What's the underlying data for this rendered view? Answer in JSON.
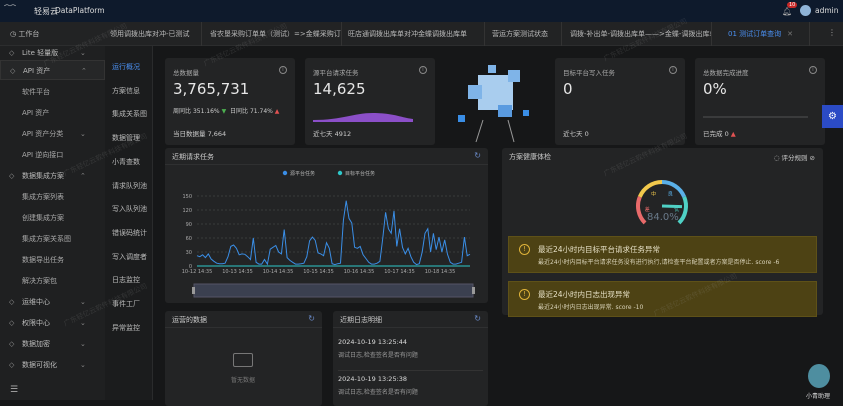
{
  "header": {
    "logo_text": "轻易云",
    "logo_caption": "集成平台",
    "app_name": "DataPlatform",
    "notification_count": "10",
    "user": "admin"
  },
  "tabs": [
    {
      "label": "工作台"
    },
    {
      "label": "领用调拨出库对冲-已测试"
    },
    {
      "label": "省农垦采购订单单（测试）=>金蝶采购订单单"
    },
    {
      "label": "旺店通调拨出库单对冲金蝶调拨出库单"
    },
    {
      "label": "营运方案测试状态"
    },
    {
      "label": "调拨-补出单-调拨出库单——>金蝶-调拨出库单"
    },
    {
      "label": "01 测试订单查询",
      "active": true
    }
  ],
  "sidebar": {
    "items": [
      {
        "label": "Lite 轻量版",
        "icon": "lite-icon",
        "chev": "⌄"
      },
      {
        "label": "API 资产",
        "icon": "api-icon",
        "chev": "⌃"
      },
      {
        "label": "软件平台",
        "sub": true
      },
      {
        "label": "API 资产",
        "sub": true
      },
      {
        "label": "API 资产分类",
        "sub": true,
        "chev": "⌄"
      },
      {
        "label": "API 逆向接口",
        "sub": true
      },
      {
        "label": "数据集成方案",
        "icon": "integration-icon",
        "chev": "⌃"
      },
      {
        "label": "集成方案列表",
        "sub": true
      },
      {
        "label": "创建集成方案",
        "sub": true
      },
      {
        "label": "集成方案关系图",
        "sub": true
      },
      {
        "label": "数据导出任务",
        "sub": true
      },
      {
        "label": "解决方案包",
        "sub": true
      },
      {
        "label": "运维中心",
        "icon": "ops-icon",
        "chev": "⌄"
      },
      {
        "label": "权限中心",
        "icon": "permission-icon",
        "chev": "⌄"
      },
      {
        "label": "数据加密",
        "icon": "encrypt-icon",
        "chev": "⌄"
      },
      {
        "label": "数据可视化",
        "icon": "chart-icon",
        "chev": "⌄"
      }
    ]
  },
  "subnav": [
    "运行概况",
    "方案信息",
    "集成关系图",
    "数据管理",
    "小青查数",
    "请求队列池",
    "写入队列池",
    "错误码统计",
    "写入调度者",
    "日志监控",
    "事件工厂",
    "异常监控"
  ],
  "stats": [
    {
      "title": "总数据量",
      "value": "3,765,731",
      "wow_label": "周同比",
      "wow": "351.16%",
      "wow_dir": "down",
      "mom_label": "日同比",
      "mom": "71.74%",
      "mom_dir": "up",
      "foot_label": "当日数据量",
      "foot_value": "7,664"
    },
    {
      "title": "源平台请求任务",
      "value": "14,625",
      "foot_label": "近七天",
      "foot_value": "4912"
    },
    {
      "title": "目标平台写入任务",
      "value": "0",
      "foot_label": "近七天",
      "foot_value": "0"
    },
    {
      "title": "总数据完成进度",
      "value": "0%",
      "progress": 0,
      "foot_label": "已完成",
      "foot_value": "0"
    }
  ],
  "chart_data": {
    "type": "line",
    "title": "近期请求任务",
    "x_ticks": [
      "10-12 14:35",
      "10-13 14:35",
      "10-14 14:35",
      "10-15 14:35",
      "10-16 14:35",
      "10-17 14:35",
      "10-18 14:35"
    ],
    "ylim": [
      0,
      150
    ],
    "y_ticks": [
      0,
      30,
      60,
      90,
      120,
      150
    ],
    "grid": true,
    "legend": "top",
    "series": [
      {
        "name": "源平台任务",
        "color": "#3a8ee6",
        "values": [
          22,
          20,
          24,
          18,
          26,
          15,
          10,
          6,
          5,
          5,
          6,
          20,
          42,
          45,
          38,
          24,
          26,
          25,
          20,
          14,
          60,
          8,
          4,
          4,
          14,
          4,
          36,
          40,
          44,
          30,
          26,
          78,
          18,
          12,
          8,
          4,
          4,
          5,
          6,
          20,
          54,
          62,
          55,
          28,
          26,
          22,
          50,
          38,
          5,
          3,
          5,
          6,
          98,
          140,
          102,
          92,
          40,
          38,
          42,
          24,
          16,
          8,
          4,
          4,
          6,
          10,
          60,
          115,
          80,
          70,
          118,
          42,
          80,
          40,
          26,
          38,
          20,
          8,
          3,
          5,
          30,
          70,
          80,
          30,
          70,
          35,
          62,
          30,
          56,
          25,
          8,
          4,
          4,
          6,
          8,
          62,
          22,
          25
        ]
      },
      {
        "name": "目标平台任务",
        "color": "#2ec7c9",
        "values": [
          0,
          0,
          0,
          0,
          0,
          0,
          0,
          0,
          0,
          0,
          0,
          0,
          0,
          0,
          0,
          0,
          0,
          0,
          0,
          0,
          0,
          0,
          0,
          0,
          0,
          0,
          0,
          0,
          0,
          0,
          0,
          0,
          0,
          0,
          0,
          0,
          0,
          0,
          0,
          0,
          0,
          0,
          0,
          0,
          0,
          0,
          0,
          0,
          0,
          0,
          0,
          0,
          0,
          0,
          0,
          0,
          0,
          0,
          0,
          0,
          0,
          0,
          0,
          0,
          0,
          0,
          0,
          0,
          0,
          0,
          0,
          0,
          0,
          0,
          0,
          0,
          0,
          0,
          0,
          0,
          0,
          0,
          0,
          0,
          0,
          0,
          0,
          0,
          0,
          0,
          0,
          0,
          0,
          0,
          0,
          0,
          0,
          0
        ]
      }
    ]
  },
  "health": {
    "title": "方案健康体检",
    "recheck": "评分规则",
    "score": "84.0%",
    "score_value": 84,
    "levels": [
      "差",
      "中",
      "良",
      "优"
    ],
    "alerts": [
      {
        "title": "最近24小时内目标平台请求任务异常",
        "desc": "最近24小时内目标平台请求任务没有进行执行,请检查平台配置或者方案是否停止. score -6"
      },
      {
        "title": "最近24小时内日志出现异常",
        "desc": "最近24小时内日志出现异常. score -10"
      }
    ]
  },
  "recent_data": {
    "title": "运营的数据",
    "empty": "暂无数据"
  },
  "recent_logs": {
    "title": "近期日志明细",
    "items": [
      {
        "time": "2024-10-19 13:25:44",
        "text": "调试日志,检查签名是否有问题"
      },
      {
        "time": "2024-10-19 13:25:38",
        "text": "调试日志,检查签名是否有问题"
      }
    ]
  },
  "assistant": {
    "label": "小青助理"
  },
  "colors": {
    "accent": "#3a8ee6",
    "settings": "#2b4bc5",
    "alert_bg": "#4d4214"
  }
}
